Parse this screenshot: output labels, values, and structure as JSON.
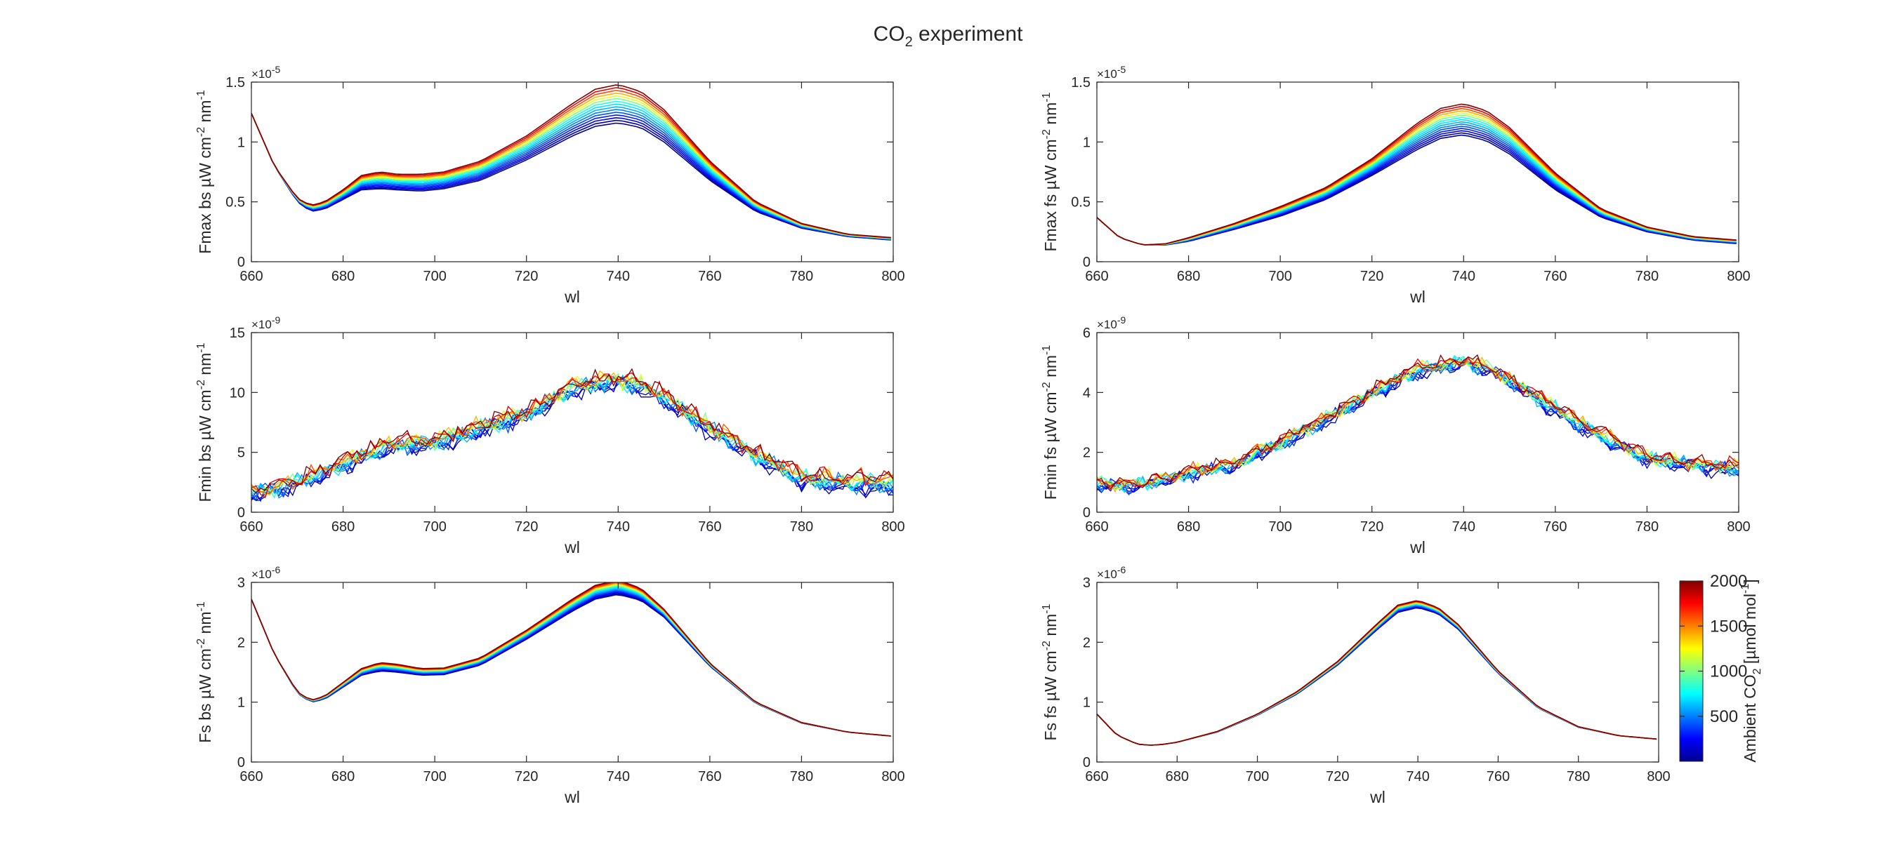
{
  "figure": {
    "title": "CO",
    "title_sub": "2",
    "title_rest": " experiment"
  },
  "colorbar": {
    "label_prefix": "Ambient CO",
    "label_sub": "2",
    "label_unit": " [µmol mol",
    "label_sup": "-1",
    "label_close": "]",
    "min": 0,
    "max": 2000,
    "ticks": [
      "2000",
      "1500",
      "1000",
      "500"
    ],
    "tick_values": [
      2000,
      1500,
      1000,
      500
    ],
    "colormap": "jet"
  },
  "chart_data": [
    {
      "type": "line",
      "id": "fmax_bs",
      "ylabel_prefix": "Fmax bs ",
      "ylabel_units": "µW cm",
      "ylabel_sup": "-2",
      "ylabel_tail": " nm",
      "ylabel_sup2": "-1",
      "xlabel": "wl",
      "xlim": [
        660,
        800
      ],
      "ylim": [
        0,
        1.5
      ],
      "multiplier": "×10",
      "exponent": "-5",
      "xticks": [
        "660",
        "680",
        "700",
        "720",
        "740",
        "760",
        "780",
        "800"
      ],
      "yticks": [
        "0",
        "0.5",
        "1",
        "1.5"
      ],
      "ytick_values": [
        0,
        0.5,
        1,
        1.5
      ],
      "co2_levels": [
        50,
        100,
        200,
        300,
        400,
        500,
        600,
        700,
        800,
        1000,
        1200,
        1400,
        1600,
        1800,
        2000
      ],
      "profile": {
        "x": [
          660,
          665,
          670,
          673,
          676,
          680,
          684,
          688,
          692,
          697,
          702,
          710,
          720,
          730,
          735,
          740,
          745,
          750,
          760,
          770,
          780,
          790,
          800
        ],
        "y_low": [
          1.24,
          0.8,
          0.5,
          0.42,
          0.44,
          0.52,
          0.6,
          0.61,
          0.6,
          0.59,
          0.61,
          0.68,
          0.85,
          1.05,
          1.13,
          1.16,
          1.12,
          1.0,
          0.68,
          0.42,
          0.28,
          0.21,
          0.18
        ],
        "y_high": [
          1.24,
          0.8,
          0.53,
          0.47,
          0.5,
          0.6,
          0.72,
          0.75,
          0.73,
          0.73,
          0.75,
          0.84,
          1.05,
          1.32,
          1.44,
          1.48,
          1.42,
          1.27,
          0.84,
          0.5,
          0.32,
          0.23,
          0.2
        ]
      }
    },
    {
      "type": "line",
      "id": "fmax_fs",
      "ylabel_prefix": "Fmax fs ",
      "ylabel_units": "µW cm",
      "ylabel_sup": "-2",
      "ylabel_tail": " nm",
      "ylabel_sup2": "-1",
      "xlabel": "wl",
      "xlim": [
        660,
        800
      ],
      "ylim": [
        0,
        1.5
      ],
      "multiplier": "×10",
      "exponent": "-5",
      "xticks": [
        "660",
        "680",
        "700",
        "720",
        "740",
        "760",
        "780",
        "800"
      ],
      "yticks": [
        "0",
        "0.5",
        "1",
        "1.5"
      ],
      "ytick_values": [
        0,
        0.5,
        1,
        1.5
      ],
      "co2_levels": [
        50,
        100,
        200,
        300,
        400,
        500,
        600,
        700,
        800,
        1000,
        1200,
        1400,
        1600,
        1800,
        2000
      ],
      "profile": {
        "x": [
          660,
          665,
          670,
          675,
          680,
          690,
          700,
          710,
          720,
          730,
          735,
          740,
          745,
          750,
          760,
          770,
          780,
          790,
          800
        ],
        "y_low": [
          0.37,
          0.2,
          0.14,
          0.14,
          0.17,
          0.27,
          0.38,
          0.52,
          0.72,
          0.94,
          1.03,
          1.06,
          1.01,
          0.9,
          0.6,
          0.37,
          0.25,
          0.18,
          0.15
        ],
        "y_high": [
          0.37,
          0.2,
          0.14,
          0.15,
          0.2,
          0.32,
          0.46,
          0.62,
          0.86,
          1.16,
          1.28,
          1.32,
          1.26,
          1.12,
          0.74,
          0.44,
          0.29,
          0.21,
          0.18
        ]
      }
    },
    {
      "type": "line",
      "id": "fmin_bs",
      "ylabel_prefix": "Fmin bs ",
      "ylabel_units": "µW cm",
      "ylabel_sup": "-2",
      "ylabel_tail": " nm",
      "ylabel_sup2": "-1",
      "xlabel": "wl",
      "xlim": [
        660,
        800
      ],
      "ylim": [
        0,
        15
      ],
      "multiplier": "×10",
      "exponent": "-9",
      "xticks": [
        "660",
        "680",
        "700",
        "720",
        "740",
        "760",
        "780",
        "800"
      ],
      "yticks": [
        "0",
        "5",
        "10",
        "15"
      ],
      "ytick_values": [
        0,
        5,
        10,
        15
      ],
      "co2_levels": [
        50,
        100,
        200,
        300,
        400,
        500,
        600,
        700,
        800,
        1000,
        1200,
        1400,
        1600,
        1800,
        2000
      ],
      "noise": 0.9,
      "profile": {
        "x": [
          660,
          670,
          680,
          690,
          700,
          710,
          720,
          730,
          740,
          745,
          750,
          760,
          770,
          780,
          790,
          800
        ],
        "y_low": [
          1.2,
          2.2,
          3.6,
          5.2,
          5.5,
          6.6,
          7.8,
          10.0,
          10.6,
          10.2,
          9.2,
          6.6,
          4.4,
          2.4,
          2.0,
          1.8
        ],
        "y_high": [
          1.8,
          2.8,
          4.4,
          6.0,
          6.2,
          7.4,
          8.6,
          10.8,
          11.4,
          11.0,
          10.0,
          7.4,
          5.2,
          3.2,
          3.0,
          3.0
        ]
      }
    },
    {
      "type": "line",
      "id": "fmin_fs",
      "ylabel_prefix": "Fmin fs ",
      "ylabel_units": "µW cm",
      "ylabel_sup": "-2",
      "ylabel_tail": " nm",
      "ylabel_sup2": "-1",
      "xlabel": "wl",
      "xlim": [
        660,
        800
      ],
      "ylim": [
        0,
        6
      ],
      "multiplier": "×10",
      "exponent": "-9",
      "xticks": [
        "660",
        "680",
        "700",
        "720",
        "740",
        "760",
        "780",
        "800"
      ],
      "yticks": [
        "0",
        "2",
        "4",
        "6"
      ],
      "ytick_values": [
        0,
        2,
        4,
        6
      ],
      "co2_levels": [
        50,
        100,
        200,
        300,
        400,
        500,
        600,
        700,
        800,
        1000,
        1200,
        1400,
        1600,
        1800,
        2000
      ],
      "noise": 0.3,
      "profile": {
        "x": [
          660,
          670,
          680,
          690,
          700,
          710,
          720,
          730,
          740,
          745,
          750,
          760,
          770,
          780,
          790,
          800
        ],
        "y_low": [
          0.8,
          0.85,
          1.2,
          1.5,
          2.2,
          3.0,
          3.9,
          4.6,
          4.9,
          4.7,
          4.3,
          3.3,
          2.4,
          1.7,
          1.5,
          1.3
        ],
        "y_high": [
          1.0,
          1.0,
          1.4,
          1.7,
          2.4,
          3.2,
          4.1,
          4.9,
          5.1,
          4.9,
          4.5,
          3.6,
          2.7,
          1.9,
          1.7,
          1.6
        ]
      }
    },
    {
      "type": "line",
      "id": "fs_bs",
      "ylabel_prefix": "Fs bs ",
      "ylabel_units": "µW cm",
      "ylabel_sup": "-2",
      "ylabel_tail": " nm",
      "ylabel_sup2": "-1",
      "xlabel": "wl",
      "xlim": [
        660,
        800
      ],
      "ylim": [
        0,
        3
      ],
      "multiplier": "×10",
      "exponent": "-6",
      "xticks": [
        "660",
        "680",
        "700",
        "720",
        "740",
        "760",
        "780",
        "800"
      ],
      "yticks": [
        "0",
        "1",
        "2",
        "3"
      ],
      "ytick_values": [
        0,
        1,
        2,
        3
      ],
      "co2_levels": [
        50,
        100,
        200,
        300,
        400,
        500,
        600,
        700,
        800,
        1000,
        1200,
        1400,
        1600,
        1800,
        2000
      ],
      "profile": {
        "x": [
          660,
          665,
          670,
          673,
          676,
          680,
          684,
          688,
          692,
          697,
          702,
          710,
          720,
          730,
          735,
          740,
          745,
          750,
          760,
          770,
          780,
          790,
          800
        ],
        "y_low": [
          2.72,
          1.8,
          1.15,
          1.0,
          1.05,
          1.25,
          1.45,
          1.52,
          1.5,
          1.45,
          1.46,
          1.62,
          2.05,
          2.52,
          2.72,
          2.8,
          2.7,
          2.42,
          1.6,
          0.98,
          0.65,
          0.5,
          0.43
        ],
        "y_high": [
          2.72,
          1.8,
          1.17,
          1.03,
          1.1,
          1.33,
          1.56,
          1.66,
          1.63,
          1.56,
          1.57,
          1.74,
          2.2,
          2.72,
          2.95,
          3.04,
          2.9,
          2.55,
          1.65,
          1.0,
          0.66,
          0.5,
          0.43
        ]
      }
    },
    {
      "type": "line",
      "id": "fs_fs",
      "ylabel_prefix": "Fs fs ",
      "ylabel_units": "µW cm",
      "ylabel_sup": "-2",
      "ylabel_tail": " nm",
      "ylabel_sup2": "-1",
      "xlabel": "wl",
      "xlim": [
        660,
        800
      ],
      "ylim": [
        0,
        3
      ],
      "multiplier": "×10",
      "exponent": "-6",
      "xticks": [
        "660",
        "680",
        "700",
        "720",
        "740",
        "760",
        "780",
        "800"
      ],
      "yticks": [
        "0",
        "1",
        "2",
        "3"
      ],
      "ytick_values": [
        0,
        1,
        2,
        3
      ],
      "co2_levels": [
        50,
        100,
        200,
        300,
        400,
        500,
        600,
        700,
        800,
        1000,
        1200,
        1400,
        1600,
        1800,
        2000
      ],
      "profile": {
        "x": [
          660,
          665,
          670,
          673,
          676,
          680,
          690,
          700,
          710,
          720,
          730,
          735,
          740,
          745,
          750,
          760,
          770,
          780,
          790,
          800
        ],
        "y_low": [
          0.8,
          0.45,
          0.3,
          0.28,
          0.29,
          0.33,
          0.5,
          0.78,
          1.14,
          1.62,
          2.22,
          2.5,
          2.58,
          2.48,
          2.22,
          1.48,
          0.9,
          0.58,
          0.44,
          0.38
        ],
        "y_high": [
          0.8,
          0.45,
          0.3,
          0.28,
          0.29,
          0.33,
          0.51,
          0.8,
          1.18,
          1.68,
          2.32,
          2.62,
          2.7,
          2.58,
          2.3,
          1.52,
          0.92,
          0.59,
          0.44,
          0.38
        ]
      }
    }
  ]
}
